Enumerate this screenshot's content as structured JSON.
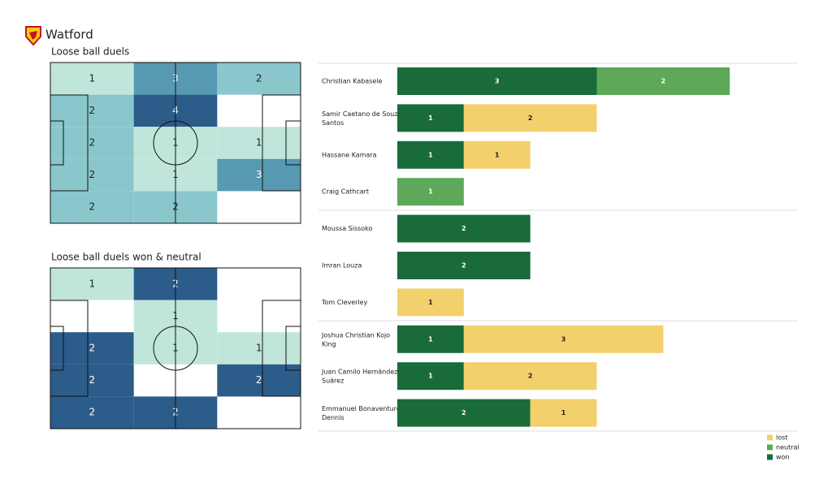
{
  "team": "Watford",
  "chart_data": [
    {
      "type": "heatmap",
      "title": "Loose ball duels",
      "values": [
        [
          1,
          3,
          2
        ],
        [
          2,
          4,
          null
        ],
        [
          2,
          1,
          1
        ],
        [
          2,
          1,
          3
        ],
        [
          2,
          2,
          null
        ]
      ],
      "colormap": [
        "#c0e6dc",
        "#6db8c4",
        "#2b5c8a"
      ]
    },
    {
      "type": "heatmap",
      "title": "Loose ball duels won & neutral",
      "values": [
        [
          1,
          2,
          null
        ],
        [
          null,
          1,
          null
        ],
        [
          2,
          1,
          1
        ],
        [
          2,
          null,
          2
        ],
        [
          2,
          2,
          null
        ]
      ],
      "colormap": [
        "#c0e6dc",
        "#6db8c4",
        "#2b5c8a"
      ]
    },
    {
      "type": "stacked-bar-horizontal",
      "categories": [
        "Christian Kabasele",
        "Samir Caetano de Souza Santos",
        "Hassane Kamara",
        "Craig Cathcart",
        "Moussa Sissoko",
        "Imran Louza",
        "Tom Cleverley",
        "Joshua Christian Kojo King",
        "Juan Camilo Hernández Suárez",
        "Emmanuel Bonaventure Dennis"
      ],
      "series": [
        {
          "name": "won",
          "color": "#1a6b3a",
          "values": [
            3,
            1,
            1,
            null,
            2,
            2,
            null,
            1,
            1,
            2
          ]
        },
        {
          "name": "neutral",
          "color": "#5ea85a",
          "values": [
            2,
            null,
            null,
            1,
            null,
            null,
            null,
            null,
            null,
            null
          ]
        },
        {
          "name": "lost",
          "color": "#f2d06b",
          "values": [
            null,
            2,
            1,
            null,
            null,
            null,
            1,
            3,
            2,
            1
          ]
        }
      ],
      "xlim": [
        0,
        6
      ],
      "legend": "lower right"
    }
  ]
}
